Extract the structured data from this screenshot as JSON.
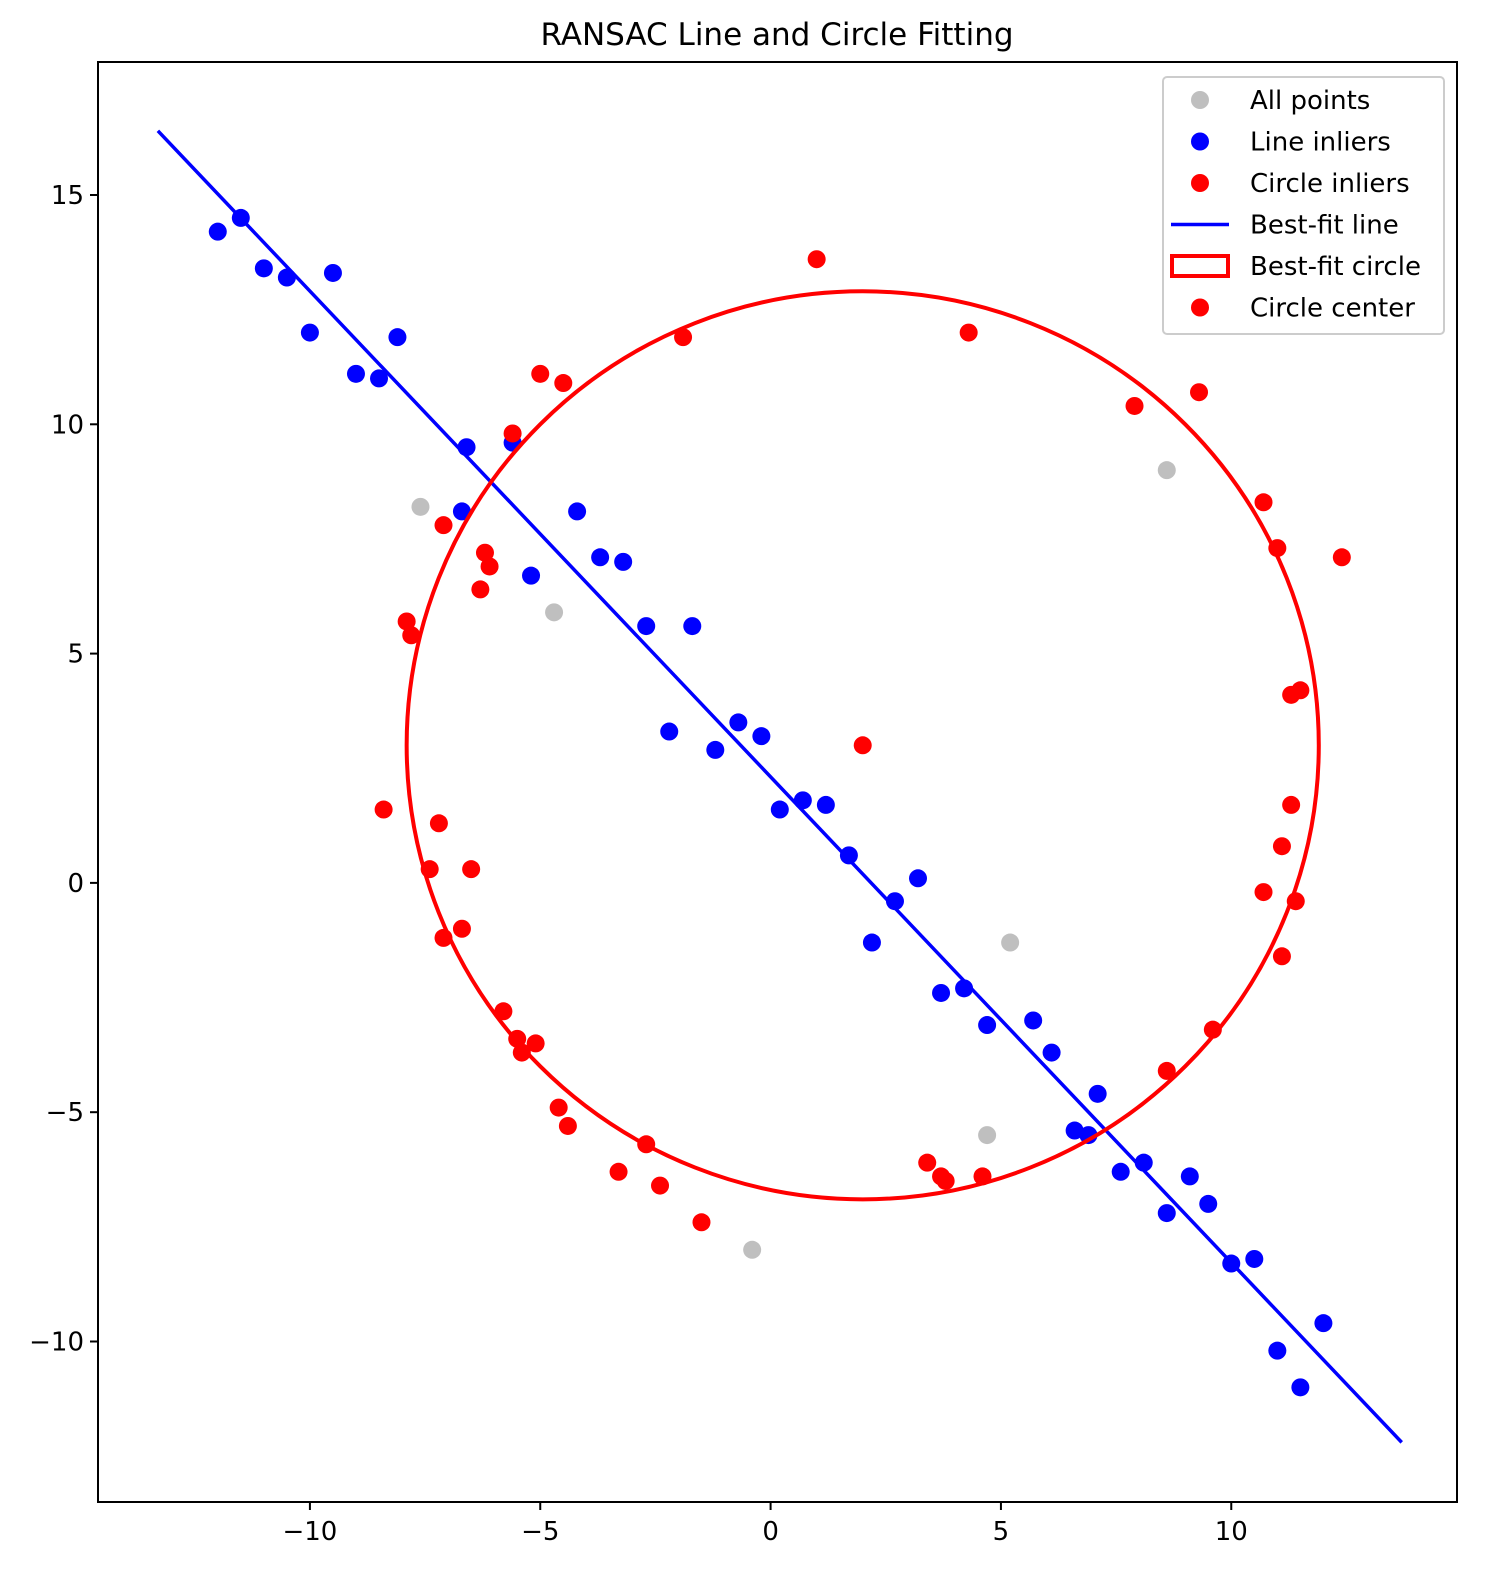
{
  "chart_data": {
    "type": "scatter",
    "title": "RANSAC Line and Circle Fitting",
    "xlabel": "",
    "ylabel": "",
    "xlim": [
      -14.6,
      14.9
    ],
    "ylim": [
      -13.5,
      17.9
    ],
    "x_ticks": [
      -10,
      -5,
      0,
      5,
      10
    ],
    "y_ticks": [
      -10,
      -5,
      0,
      5,
      10,
      15
    ],
    "x_tick_labels": [
      "−10",
      "−5",
      "0",
      "5",
      "10"
    ],
    "y_tick_labels": [
      "−10",
      "−5",
      "0",
      "5",
      "10",
      "15"
    ],
    "grid": false,
    "legend_position": "top-right",
    "colors": {
      "all_points": "#aaaaaa",
      "line_inliers": "#0000ff",
      "circle_inliers": "#ff0000",
      "best_fit_line": "#0000ff",
      "best_fit_circle": "#ff0000",
      "circle_center": "#ff0000"
    },
    "legend": [
      {
        "label": "All points",
        "kind": "marker",
        "color": "#aaaaaa"
      },
      {
        "label": "Line inliers",
        "kind": "marker",
        "color": "#0000ff"
      },
      {
        "label": "Circle inliers",
        "kind": "marker",
        "color": "#ff0000"
      },
      {
        "label": "Best-fit line",
        "kind": "line",
        "color": "#0000ff"
      },
      {
        "label": "Best-fit circle",
        "kind": "patch",
        "color": "#ff0000"
      },
      {
        "label": "Circle center",
        "kind": "marker",
        "color": "#ff0000"
      }
    ],
    "all_points_outliers": [
      [
        -7.6,
        8.2
      ],
      [
        -4.7,
        5.9
      ],
      [
        8.6,
        9.0
      ],
      [
        5.2,
        -1.3
      ],
      [
        4.7,
        -5.5
      ],
      [
        -0.4,
        -8.0
      ]
    ],
    "line_inliers": [
      [
        -12.0,
        14.2
      ],
      [
        -11.5,
        14.5
      ],
      [
        -11.0,
        13.4
      ],
      [
        -10.5,
        13.2
      ],
      [
        -9.5,
        13.3
      ],
      [
        -10.0,
        12.0
      ],
      [
        -8.1,
        11.9
      ],
      [
        -9.0,
        11.1
      ],
      [
        -8.5,
        11.0
      ],
      [
        -6.6,
        9.5
      ],
      [
        -5.6,
        9.6
      ],
      [
        -6.7,
        8.1
      ],
      [
        -4.2,
        8.1
      ],
      [
        -3.7,
        7.1
      ],
      [
        -3.2,
        7.0
      ],
      [
        -5.2,
        6.7
      ],
      [
        -2.7,
        5.6
      ],
      [
        -1.7,
        5.6
      ],
      [
        -2.2,
        3.3
      ],
      [
        -0.7,
        3.5
      ],
      [
        -0.2,
        3.2
      ],
      [
        -1.2,
        2.9
      ],
      [
        0.2,
        1.6
      ],
      [
        0.7,
        1.8
      ],
      [
        1.2,
        1.7
      ],
      [
        1.7,
        0.6
      ],
      [
        3.2,
        0.1
      ],
      [
        2.7,
        -0.4
      ],
      [
        2.2,
        -1.3
      ],
      [
        3.7,
        -2.4
      ],
      [
        4.2,
        -2.3
      ],
      [
        5.7,
        -3.0
      ],
      [
        4.7,
        -3.1
      ],
      [
        6.1,
        -3.7
      ],
      [
        7.1,
        -4.6
      ],
      [
        6.6,
        -5.4
      ],
      [
        6.9,
        -5.5
      ],
      [
        7.6,
        -6.3
      ],
      [
        8.1,
        -6.1
      ],
      [
        9.1,
        -6.4
      ],
      [
        9.5,
        -7.0
      ],
      [
        8.6,
        -7.2
      ],
      [
        10.0,
        -8.3
      ],
      [
        10.5,
        -8.2
      ],
      [
        12.0,
        -9.6
      ],
      [
        11.0,
        -10.2
      ],
      [
        11.5,
        -11.0
      ]
    ],
    "circle_inliers": [
      [
        1.0,
        13.6
      ],
      [
        -1.9,
        11.9
      ],
      [
        4.3,
        12.0
      ],
      [
        -5.0,
        11.1
      ],
      [
        -4.5,
        10.9
      ],
      [
        7.9,
        10.4
      ],
      [
        9.3,
        10.7
      ],
      [
        -5.6,
        9.8
      ],
      [
        -7.1,
        7.8
      ],
      [
        10.7,
        8.3
      ],
      [
        -6.2,
        7.2
      ],
      [
        -6.1,
        6.9
      ],
      [
        -6.3,
        6.4
      ],
      [
        11.0,
        7.3
      ],
      [
        12.4,
        7.1
      ],
      [
        -7.9,
        5.7
      ],
      [
        -7.8,
        5.4
      ],
      [
        11.3,
        4.1
      ],
      [
        11.5,
        4.2
      ],
      [
        -8.4,
        1.6
      ],
      [
        -7.2,
        1.3
      ],
      [
        11.3,
        1.7
      ],
      [
        11.1,
        0.8
      ],
      [
        -7.4,
        0.3
      ],
      [
        -6.5,
        0.3
      ],
      [
        10.7,
        -0.2
      ],
      [
        11.4,
        -0.4
      ],
      [
        -7.1,
        -1.2
      ],
      [
        -6.7,
        -1.0
      ],
      [
        11.1,
        -1.6
      ],
      [
        -5.8,
        -2.8
      ],
      [
        9.6,
        -3.2
      ],
      [
        -5.5,
        -3.4
      ],
      [
        -5.1,
        -3.5
      ],
      [
        -5.4,
        -3.7
      ],
      [
        8.6,
        -4.1
      ],
      [
        -4.6,
        -4.9
      ],
      [
        -4.4,
        -5.3
      ],
      [
        -2.7,
        -5.7
      ],
      [
        -3.3,
        -6.3
      ],
      [
        3.4,
        -6.1
      ],
      [
        3.7,
        -6.4
      ],
      [
        3.8,
        -6.5
      ],
      [
        4.6,
        -6.4
      ],
      [
        -2.4,
        -6.6
      ],
      [
        -1.5,
        -7.4
      ]
    ],
    "best_fit_line": {
      "x": [
        -13.3,
        13.7
      ],
      "y": [
        16.4,
        -12.2
      ]
    },
    "best_fit_circle": {
      "center": [
        2.0,
        3.0
      ],
      "radius": 9.9
    },
    "circle_center": [
      2.0,
      3.0
    ]
  }
}
